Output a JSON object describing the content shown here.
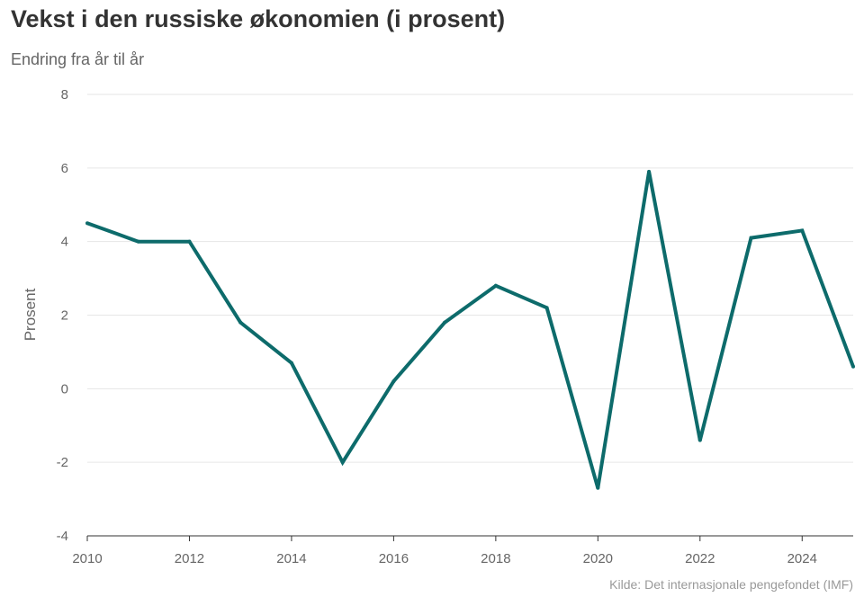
{
  "header": {
    "title": "Vekst i den russiske økonomien (i prosent)",
    "subtitle": "Endring fra år til år"
  },
  "footer": {
    "source": "Kilde: Det internasjonale pengefondet (IMF)"
  },
  "chart_data": {
    "type": "line",
    "title": "Vekst i den russiske økonomien (i prosent)",
    "subtitle": "Endring fra år til år",
    "xlabel": "",
    "ylabel": "Prosent",
    "x": [
      2010,
      2011,
      2012,
      2013,
      2014,
      2015,
      2016,
      2017,
      2018,
      2019,
      2020,
      2021,
      2022,
      2023,
      2024,
      2025
    ],
    "series": [
      {
        "values": [
          4.5,
          4.0,
          4.0,
          1.8,
          0.7,
          -2.0,
          0.2,
          1.8,
          2.8,
          2.2,
          -2.7,
          5.9,
          -1.4,
          4.1,
          4.3,
          0.6
        ],
        "color": "#0d6b6b"
      }
    ],
    "xlim": [
      2010,
      2025
    ],
    "ylim": [
      -4,
      8
    ],
    "yticks": [
      -4,
      -2,
      0,
      2,
      4,
      6,
      8
    ],
    "xticks": [
      2010,
      2012,
      2014,
      2016,
      2018,
      2020,
      2022,
      2024
    ],
    "grid": true,
    "colors": {
      "line": "#0d6b6b",
      "grid": "#e6e6e6",
      "axis": "#333333"
    },
    "source": "Kilde: Det internasjonale pengefondet (IMF)"
  }
}
